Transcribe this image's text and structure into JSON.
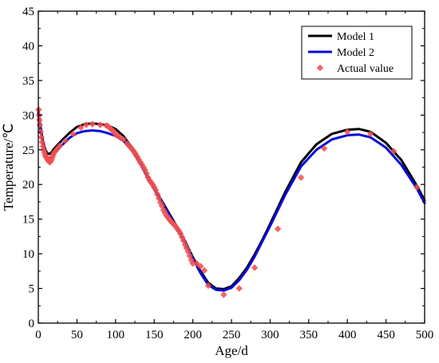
{
  "chart_data": {
    "type": "line",
    "xlabel": "Age/d",
    "ylabel": "Temperature/℃",
    "xlim": [
      0,
      500
    ],
    "ylim": [
      0,
      45
    ],
    "xticks": [
      0,
      50,
      100,
      150,
      200,
      250,
      300,
      350,
      400,
      450,
      500
    ],
    "yticks": [
      0,
      5,
      10,
      15,
      20,
      25,
      30,
      35,
      40,
      45
    ],
    "grid": false,
    "legend_position": "top-right",
    "series": [
      {
        "name": "Model 1",
        "kind": "line",
        "color": "#000000",
        "x": [
          0,
          2,
          4,
          6,
          8,
          10,
          12,
          14,
          17,
          20,
          25,
          30,
          40,
          50,
          60,
          70,
          80,
          90,
          100,
          110,
          120,
          130,
          140,
          150,
          160,
          170,
          180,
          190,
          200,
          210,
          220,
          230,
          240,
          250,
          260,
          270,
          280,
          290,
          300,
          320,
          340,
          360,
          380,
          400,
          415,
          430,
          450,
          470,
          490,
          500
        ],
        "y": [
          30.8,
          29.0,
          27.5,
          26.3,
          25.4,
          24.8,
          24.5,
          24.4,
          24.6,
          25.1,
          25.7,
          26.3,
          27.4,
          28.3,
          28.7,
          28.8,
          28.7,
          28.5,
          28.0,
          27.0,
          25.5,
          23.6,
          21.5,
          19.5,
          17.6,
          15.7,
          13.8,
          11.8,
          9.5,
          7.5,
          5.8,
          5.0,
          4.9,
          5.3,
          6.5,
          8.0,
          9.9,
          12.0,
          14.3,
          19.0,
          23.2,
          25.8,
          27.3,
          27.9,
          28.0,
          27.6,
          26.0,
          23.5,
          19.8,
          17.7
        ]
      },
      {
        "name": "Model 2",
        "kind": "line",
        "color": "#0a0adc",
        "x": [
          0,
          2,
          4,
          6,
          8,
          10,
          12,
          14,
          17,
          20,
          25,
          30,
          40,
          50,
          60,
          70,
          80,
          90,
          100,
          110,
          120,
          130,
          140,
          150,
          160,
          170,
          180,
          190,
          200,
          210,
          220,
          230,
          240,
          250,
          260,
          270,
          280,
          290,
          300,
          320,
          340,
          360,
          380,
          400,
          415,
          430,
          450,
          470,
          490,
          500
        ],
        "y": [
          30.3,
          28.5,
          27.0,
          25.9,
          25.0,
          24.3,
          23.9,
          23.8,
          24.0,
          24.4,
          25.0,
          25.6,
          26.7,
          27.4,
          27.7,
          27.8,
          27.7,
          27.4,
          27.0,
          26.3,
          25.1,
          23.4,
          21.3,
          19.3,
          17.4,
          15.5,
          13.6,
          11.6,
          9.3,
          7.2,
          5.5,
          4.8,
          4.7,
          5.1,
          6.2,
          7.7,
          9.6,
          11.8,
          14.0,
          18.6,
          22.6,
          25.0,
          26.5,
          27.1,
          27.2,
          26.8,
          25.3,
          22.8,
          19.4,
          17.3
        ]
      },
      {
        "name": "Actual value",
        "kind": "scatter",
        "color": "#f05050",
        "x": [
          0.5,
          1,
          1.5,
          2,
          3,
          4,
          5,
          6,
          7,
          8,
          9,
          10,
          11,
          12,
          13,
          14,
          15,
          16,
          17,
          18,
          19,
          20,
          22,
          25,
          28,
          35,
          45,
          55,
          62,
          70,
          80,
          88,
          90,
          92,
          94,
          96,
          98,
          100,
          103,
          106,
          110,
          115,
          118,
          120,
          122,
          124,
          126,
          128,
          130,
          132,
          134,
          136,
          138,
          140,
          142,
          144,
          146,
          148,
          150,
          152,
          154,
          156,
          158,
          160,
          162,
          164,
          166,
          168,
          170,
          172,
          174,
          176,
          178,
          180,
          182,
          184,
          186,
          188,
          190,
          192,
          194,
          196,
          198,
          200,
          205,
          210,
          215,
          220,
          240,
          260,
          280,
          310,
          340,
          370,
          400,
          430,
          460,
          490
        ],
        "y": [
          30.8,
          30.0,
          29.3,
          28.6,
          27.6,
          26.8,
          26.1,
          25.5,
          25.0,
          24.6,
          24.2,
          24.0,
          23.8,
          23.6,
          23.4,
          23.3,
          23.2,
          23.4,
          23.6,
          23.9,
          24.2,
          24.5,
          24.8,
          25.2,
          25.6,
          26.3,
          27.3,
          28.2,
          28.6,
          28.7,
          28.6,
          28.5,
          28.4,
          28.2,
          28.0,
          27.8,
          27.6,
          27.2,
          27.0,
          26.8,
          26.5,
          25.9,
          25.5,
          25.3,
          25.0,
          24.7,
          24.4,
          24.0,
          23.6,
          23.2,
          22.9,
          22.5,
          22.1,
          21.6,
          21.0,
          20.6,
          20.3,
          20.0,
          19.6,
          19.2,
          18.6,
          18.0,
          17.4,
          16.9,
          16.3,
          15.9,
          15.5,
          15.2,
          14.9,
          14.6,
          14.4,
          14.2,
          13.9,
          13.6,
          13.3,
          12.9,
          12.4,
          11.9,
          11.3,
          10.8,
          10.3,
          9.7,
          9.1,
          8.6,
          8.6,
          8.2,
          7.6,
          5.4,
          4.1,
          5.0,
          8.0,
          13.6,
          21.0,
          25.2,
          27.6,
          27.3,
          24.8,
          19.6
        ]
      }
    ]
  }
}
